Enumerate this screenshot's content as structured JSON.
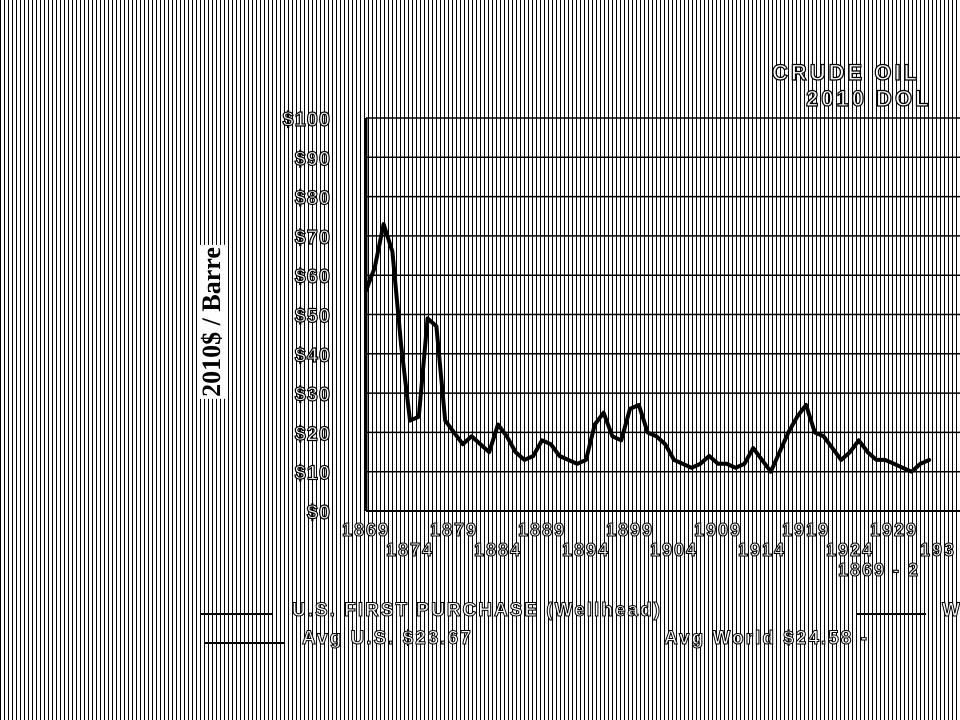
{
  "chart_data": {
    "type": "line",
    "title": "CRUDE OIL",
    "subtitle": "2010 DOL",
    "ylabel": "2010$ / Barre",
    "ylim": [
      0,
      100
    ],
    "yticks": [
      "$0",
      "$10",
      "$20",
      "$30",
      "$40",
      "$50",
      "$60",
      "$70",
      "$80",
      "$90",
      "$100"
    ],
    "xticks_upper": [
      "1869",
      "1879",
      "1889",
      "1899",
      "1909",
      "1919",
      "1929"
    ],
    "xticks_lower": [
      "1874",
      "1884",
      "1894",
      "1904",
      "1914",
      "1924",
      "193"
    ],
    "x_range_label": "1869 - 2",
    "grid": true,
    "series": [
      {
        "name": "U.S. FIRST PURCHASE (Wellhead)",
        "x": [
          1869,
          1870,
          1871,
          1872,
          1873,
          1874,
          1875,
          1876,
          1877,
          1878,
          1879,
          1880,
          1881,
          1882,
          1883,
          1884,
          1885,
          1886,
          1887,
          1888,
          1889,
          1890,
          1891,
          1892,
          1893,
          1894,
          1895,
          1896,
          1897,
          1898,
          1899,
          1900,
          1901,
          1902,
          1903,
          1904,
          1905,
          1906,
          1907,
          1908,
          1909,
          1910,
          1911,
          1912,
          1913,
          1914,
          1915,
          1916,
          1917,
          1918,
          1919,
          1920,
          1921,
          1922,
          1923,
          1924,
          1925,
          1926,
          1927,
          1928,
          1929,
          1930,
          1931,
          1932,
          1933
        ],
        "values": [
          56,
          62,
          73,
          66,
          42,
          23,
          24,
          49,
          47,
          23,
          20,
          17,
          19,
          17,
          15,
          22,
          19,
          15,
          13,
          14,
          18,
          17,
          14,
          13,
          12,
          13,
          22,
          25,
          19,
          18,
          26,
          27,
          20,
          19,
          17,
          13,
          12,
          11,
          12,
          14,
          12,
          12,
          11,
          12,
          16,
          13,
          10,
          15,
          20,
          24,
          27,
          20,
          19,
          16,
          13,
          15,
          18,
          15,
          13,
          13,
          12,
          11,
          10,
          12,
          13
        ]
      }
    ],
    "legend": {
      "left_text": "U.S. FIRST PURCHASE (Wellhead)",
      "right_text": "W",
      "avg_us": "Avg U.S. $23.67",
      "avg_world": "Avg World $24.58 -"
    }
  }
}
